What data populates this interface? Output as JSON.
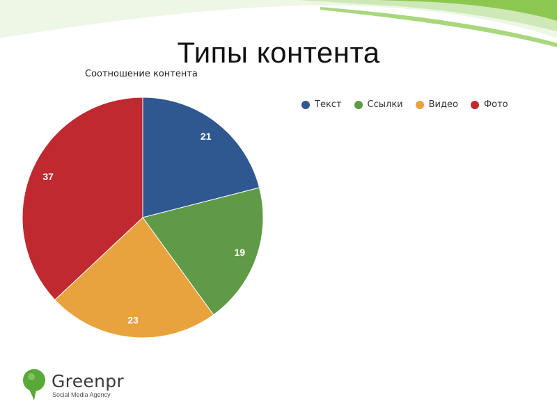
{
  "slide": {
    "title": "Типы контента"
  },
  "chart_data": {
    "type": "pie",
    "title": "Соотношение контента",
    "categories": [
      "Текст",
      "Ссылки",
      "Видео",
      "Фото"
    ],
    "values": [
      21,
      19,
      23,
      37
    ],
    "colors": [
      "#2f5891",
      "#5f9a47",
      "#e8a23e",
      "#c0292f"
    ],
    "data_labels": [
      "21",
      "19",
      "23",
      "37"
    ],
    "legend_position": "top-right"
  },
  "logo": {
    "name": "Greenpr",
    "tagline": "Social Media Agency",
    "color": "#5aa83a"
  },
  "theme": {
    "accent_green": "#7cc242",
    "accent_light": "#d6ecc2"
  }
}
